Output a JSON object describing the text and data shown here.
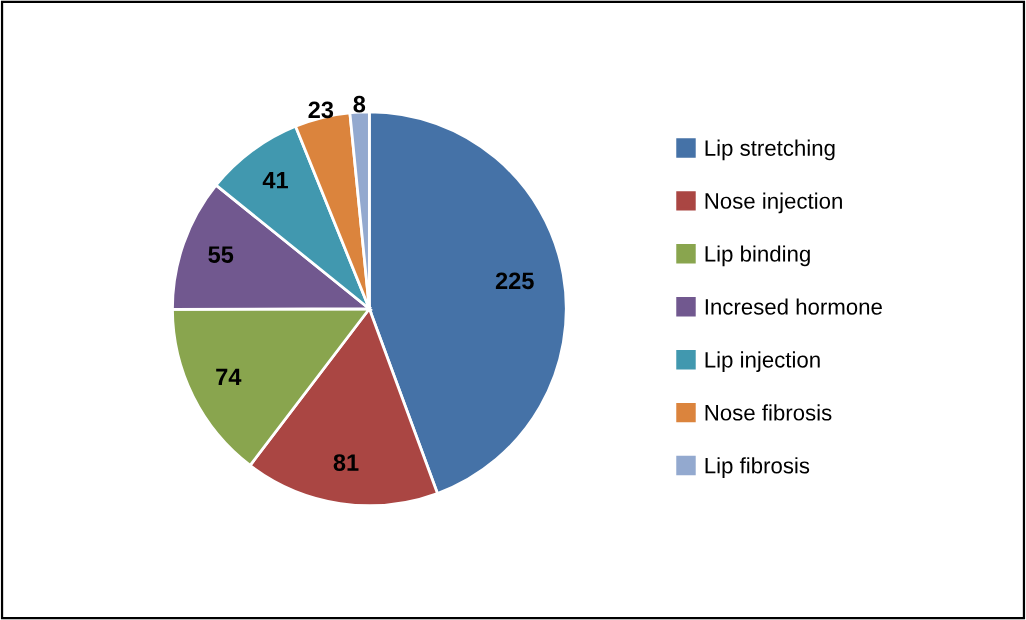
{
  "chart_data": {
    "type": "pie",
    "categories": [
      "Lip stretching",
      "Nose injection",
      "Lip binding",
      "Incresed hormone",
      "Lip injection",
      "Nose fibrosis",
      "Lip fibrosis"
    ],
    "values": [
      225,
      81,
      74,
      55,
      41,
      23,
      8
    ],
    "colors": [
      "#4572a7",
      "#aa4643",
      "#89a54e",
      "#71588f",
      "#4198af",
      "#db843d",
      "#93a9cf"
    ],
    "data_labels": true,
    "legend": "right"
  }
}
